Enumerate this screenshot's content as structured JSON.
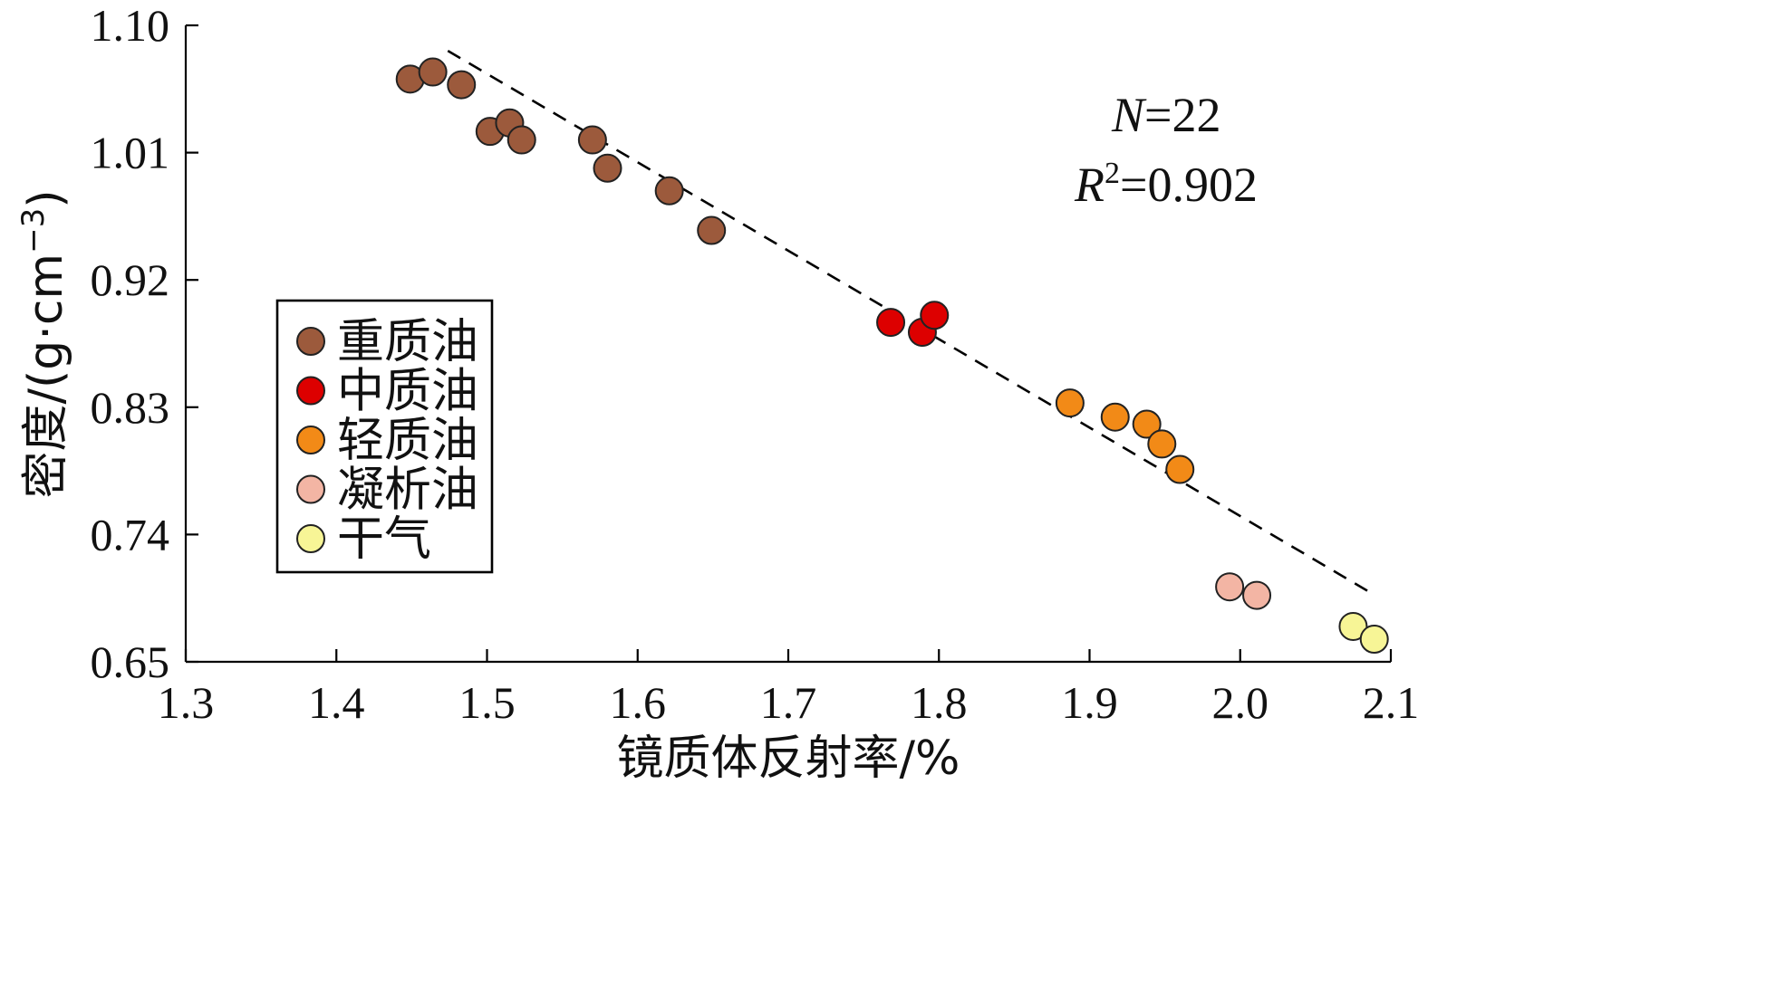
{
  "chart_data": {
    "type": "scatter",
    "xlabel": "镜质体反射率/%",
    "ylabel_main": "密度/(g·cm",
    "ylabel_sup": "−3",
    "ylabel_close": ")",
    "xlim": [
      1.3,
      2.1
    ],
    "ylim": [
      0.65,
      1.1
    ],
    "x_ticks": [
      "1.3",
      "1.4",
      "1.5",
      "1.6",
      "1.7",
      "1.8",
      "1.9",
      "2.0",
      "2.1"
    ],
    "y_ticks": [
      "0.65",
      "0.74",
      "0.83",
      "0.92",
      "1.01",
      "1.10"
    ],
    "grid": false,
    "legend_position": "middle-left",
    "annotations": {
      "n_label": "N",
      "n_value": "=22",
      "r_label": "R",
      "r_sup": "2",
      "r_value": "=0.902"
    },
    "trendline": {
      "x": [
        1.474,
        2.088
      ],
      "y": [
        1.082,
        0.698
      ],
      "style": "dashed"
    },
    "series": [
      {
        "name": "重质油",
        "color": "#9c5a3c",
        "points": [
          [
            1.449,
            1.062
          ],
          [
            1.464,
            1.067
          ],
          [
            1.483,
            1.058
          ],
          [
            1.502,
            1.025
          ],
          [
            1.515,
            1.031
          ],
          [
            1.523,
            1.019
          ],
          [
            1.57,
            1.019
          ],
          [
            1.58,
            0.999
          ],
          [
            1.621,
            0.983
          ],
          [
            1.649,
            0.955
          ]
        ]
      },
      {
        "name": "中质油",
        "color": "#dd0000",
        "points": [
          [
            1.768,
            0.89
          ],
          [
            1.789,
            0.883
          ],
          [
            1.797,
            0.895
          ]
        ]
      },
      {
        "name": "轻质油",
        "color": "#f28a17",
        "points": [
          [
            1.887,
            0.833
          ],
          [
            1.917,
            0.823
          ],
          [
            1.938,
            0.818
          ],
          [
            1.948,
            0.804
          ],
          [
            1.96,
            0.786
          ]
        ]
      },
      {
        "name": "凝析油",
        "color": "#f3b5a4",
        "points": [
          [
            1.993,
            0.703
          ],
          [
            2.011,
            0.697
          ]
        ]
      },
      {
        "name": "干气",
        "color": "#f7f596",
        "points": [
          [
            2.075,
            0.675
          ],
          [
            2.089,
            0.666
          ]
        ]
      }
    ]
  }
}
